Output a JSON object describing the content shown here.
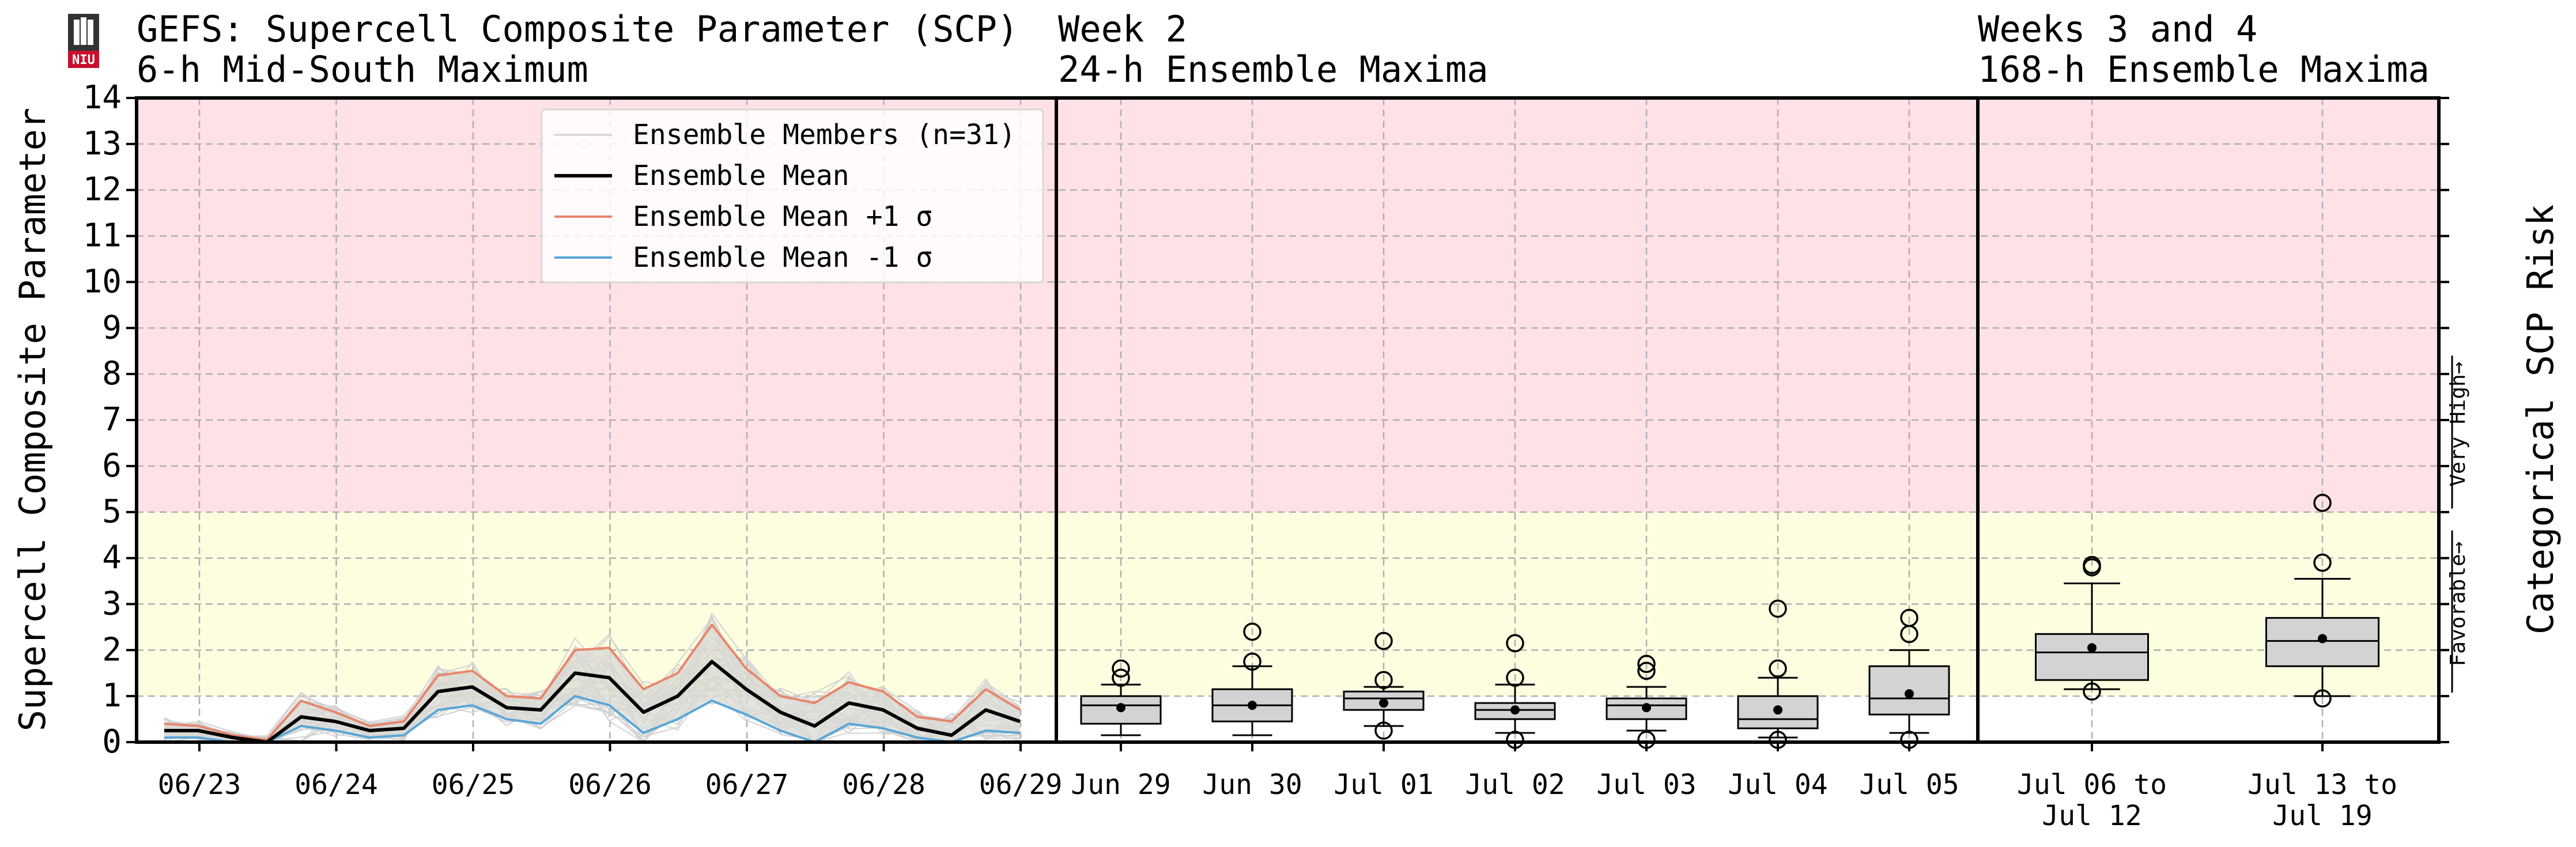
{
  "titles": {
    "panel1_line1": "GEFS: Supercell Composite Parameter (SCP)",
    "panel1_line2": "6-h Mid-South Maximum",
    "panel2_line1": "Week 2",
    "panel2_line2": "24-h Ensemble Maxima",
    "panel3_line1": "Weeks 3 and 4",
    "panel3_line2": "168-h Ensemble Maxima"
  },
  "colors": {
    "high_band": "#ffe1e6",
    "favorable_band": "#fdfde0",
    "members": "#d3d3d3",
    "mean": "#000000",
    "plus_sigma": "#e8856a",
    "minus_sigma": "#5aa6d6",
    "sigma_fill": "#d9d9d4",
    "box_fill": "#d3d3d3"
  },
  "chart_data": [
    {
      "type": "line",
      "ylabel": "Supercell Composite Parameter",
      "ylim": [
        0,
        14
      ],
      "yticks": [
        "0",
        "1",
        "2",
        "3",
        "4",
        "5",
        "6",
        "7",
        "8",
        "9",
        "10",
        "11",
        "12",
        "13",
        "14"
      ],
      "xtick_labels": [
        "06/23",
        "06/24",
        "06/25",
        "06/26",
        "06/27",
        "06/28",
        "06/29"
      ],
      "x_step_hours": 6,
      "grid": true,
      "legend_position": "top-right",
      "legend": [
        "Ensemble Members (n=31)",
        "Ensemble Mean",
        "Ensemble Mean +1 σ",
        "Ensemble Mean -1 σ"
      ],
      "mean": [
        0.25,
        0.25,
        0.1,
        0.0,
        0.55,
        0.45,
        0.25,
        0.3,
        1.1,
        1.2,
        0.75,
        0.7,
        1.5,
        1.4,
        0.65,
        1.0,
        1.75,
        1.15,
        0.65,
        0.35,
        0.85,
        0.7,
        0.3,
        0.15,
        0.7,
        0.45
      ],
      "plus_sigma": [
        0.4,
        0.35,
        0.15,
        0.05,
        0.9,
        0.65,
        0.35,
        0.45,
        1.45,
        1.55,
        1.0,
        0.95,
        2.0,
        2.05,
        1.15,
        1.5,
        2.55,
        1.6,
        1.0,
        0.85,
        1.3,
        1.1,
        0.55,
        0.45,
        1.15,
        0.7
      ],
      "minus_sigma": [
        0.1,
        0.1,
        0.0,
        0.0,
        0.35,
        0.25,
        0.1,
        0.15,
        0.7,
        0.8,
        0.5,
        0.4,
        1.0,
        0.8,
        0.2,
        0.5,
        0.9,
        0.6,
        0.25,
        0.0,
        0.4,
        0.3,
        0.1,
        0.0,
        0.25,
        0.2
      ]
    },
    {
      "type": "box",
      "categories": [
        "Jun 29",
        "Jun 30",
        "Jul 01",
        "Jul 02",
        "Jul 03",
        "Jul 04",
        "Jul 05"
      ],
      "ylim": [
        0,
        14
      ],
      "boxes": [
        {
          "low": 0.15,
          "q1": 0.4,
          "median": 0.8,
          "q3": 1.0,
          "high": 1.25,
          "mean": 0.75,
          "outliers": [
            1.4,
            1.6
          ]
        },
        {
          "low": 0.15,
          "q1": 0.45,
          "median": 0.8,
          "q3": 1.15,
          "high": 1.65,
          "mean": 0.8,
          "outliers": [
            1.75,
            2.4
          ]
        },
        {
          "low": 0.35,
          "q1": 0.7,
          "median": 0.95,
          "q3": 1.1,
          "high": 1.2,
          "mean": 0.85,
          "outliers": [
            0.25,
            1.35,
            2.2
          ]
        },
        {
          "low": 0.2,
          "q1": 0.5,
          "median": 0.7,
          "q3": 0.85,
          "high": 1.25,
          "mean": 0.7,
          "outliers": [
            0.05,
            1.4,
            2.15
          ]
        },
        {
          "low": 0.25,
          "q1": 0.5,
          "median": 0.8,
          "q3": 0.95,
          "high": 1.2,
          "mean": 0.75,
          "outliers": [
            0.05,
            1.55,
            1.7
          ]
        },
        {
          "low": 0.1,
          "q1": 0.3,
          "median": 0.5,
          "q3": 1.0,
          "high": 1.4,
          "mean": 0.7,
          "outliers": [
            0.05,
            1.6,
            2.9
          ]
        },
        {
          "low": 0.2,
          "q1": 0.6,
          "median": 0.95,
          "q3": 1.65,
          "high": 2.0,
          "mean": 1.05,
          "outliers": [
            0.05,
            2.35,
            2.7
          ]
        }
      ]
    },
    {
      "type": "box",
      "categories": [
        [
          "Jul 06 to",
          "Jul 12"
        ],
        [
          "Jul 13 to",
          "Jul 19"
        ]
      ],
      "ylim": [
        0,
        14
      ],
      "boxes": [
        {
          "low": 1.15,
          "q1": 1.35,
          "median": 1.95,
          "q3": 2.35,
          "high": 3.45,
          "mean": 2.05,
          "outliers": [
            1.1,
            3.8,
            3.85
          ]
        },
        {
          "low": 1.0,
          "q1": 1.65,
          "median": 2.2,
          "q3": 2.7,
          "high": 3.55,
          "mean": 2.25,
          "outliers": [
            0.95,
            3.9,
            5.2
          ]
        }
      ]
    }
  ],
  "right_axis": {
    "label": "Categorical SCP Risk",
    "favorable": "Favorable→",
    "very_high": "Very High→"
  },
  "logo_text": "NIU"
}
